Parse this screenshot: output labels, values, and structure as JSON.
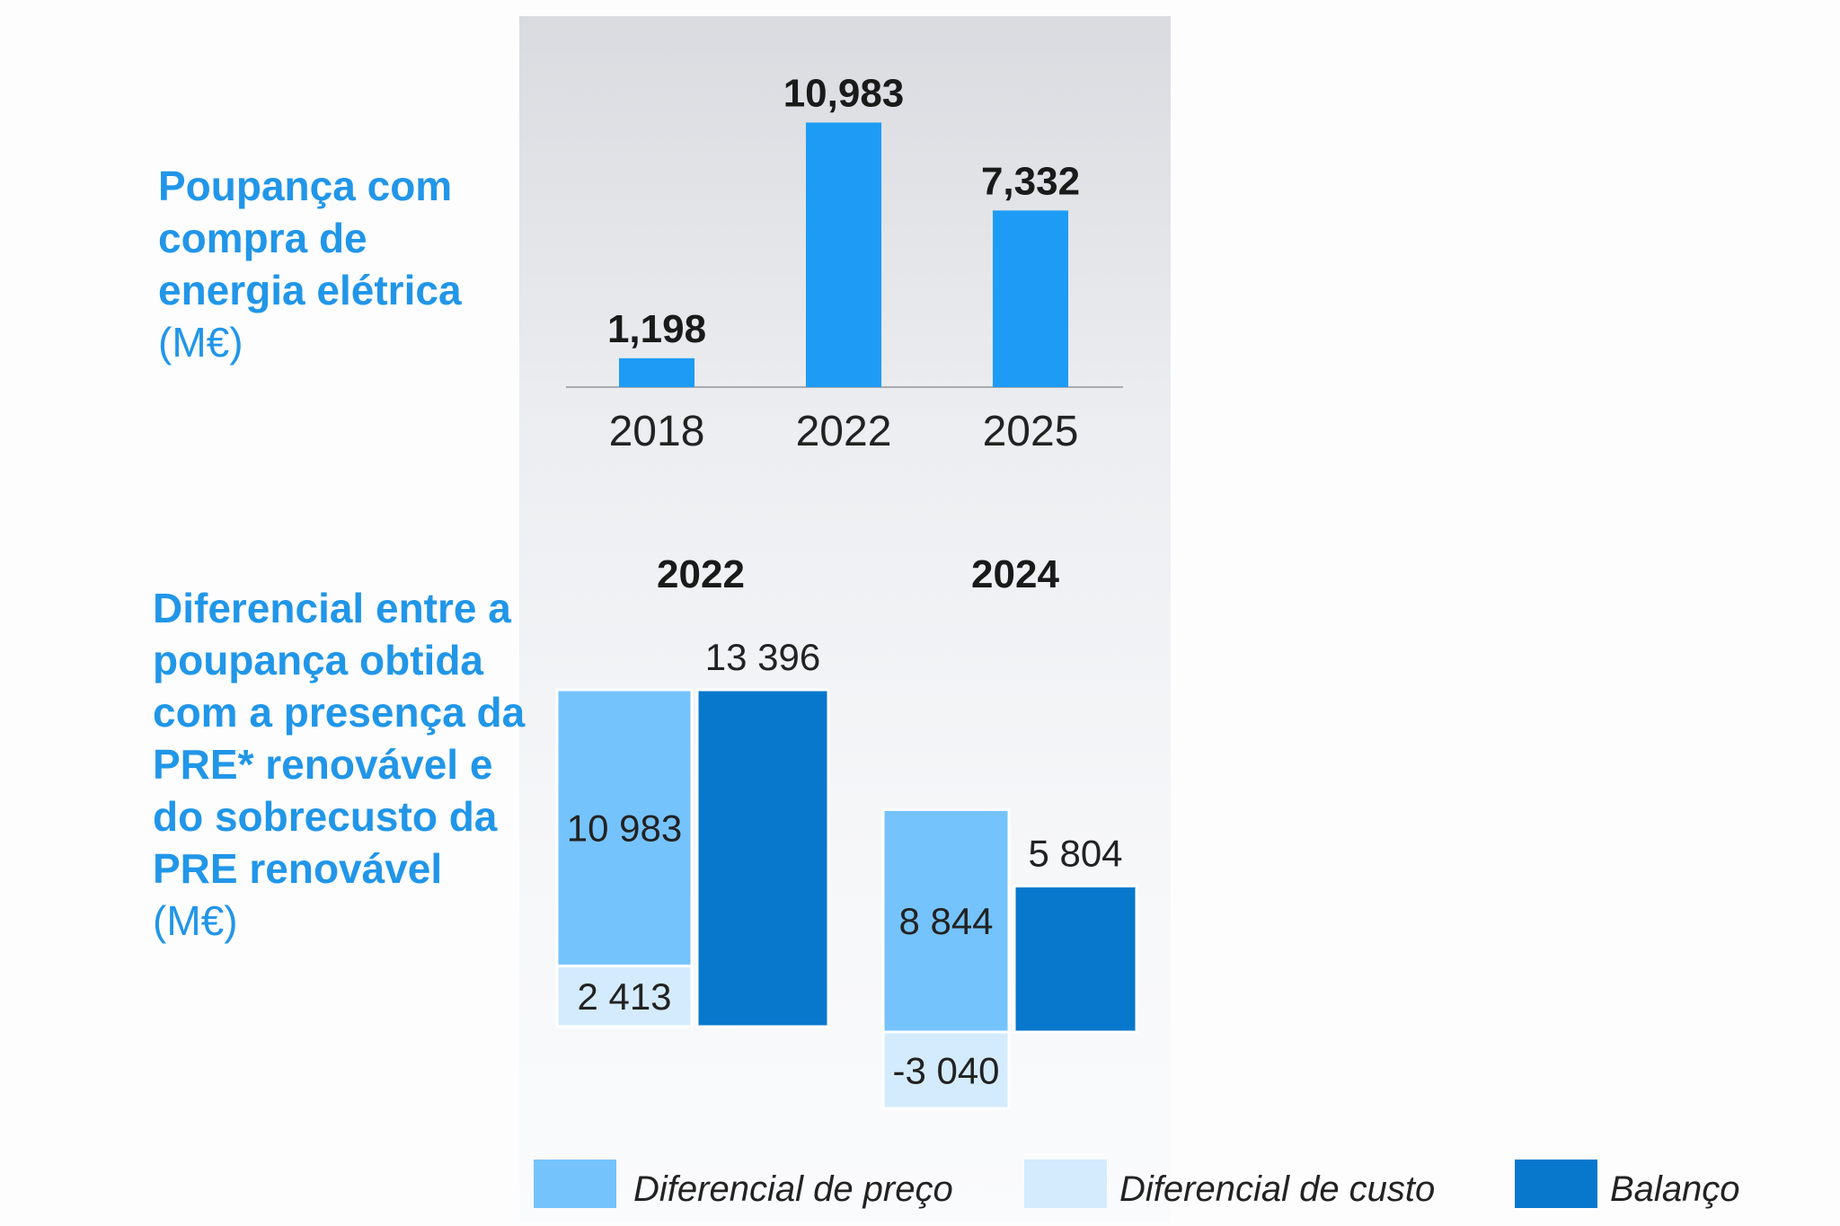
{
  "chart_data": [
    {
      "type": "bar",
      "title": "Poupança com compra de energia elétrica",
      "unit": "(M€)",
      "categories": [
        "2018",
        "2022",
        "2025"
      ],
      "values": [
        1198,
        10983,
        7332
      ],
      "value_labels": [
        "1,198",
        "10,983",
        "7,332"
      ],
      "color": "#1e9bf5",
      "ylim": [
        0,
        11000
      ]
    },
    {
      "type": "bar",
      "title": "Diferencial entre a poupança obtida com a presença da PRE* renovável e do sobrecusto da PRE renovável",
      "unit": "(M€)",
      "groups": [
        "2022",
        "2024"
      ],
      "series": [
        {
          "name": "Diferencial de preço",
          "values": [
            10983,
            8844
          ],
          "labels": [
            "10 983",
            "8 844"
          ],
          "color": "#75c3fc"
        },
        {
          "name": "Diferencial de custo",
          "values": [
            2413,
            -3040
          ],
          "labels": [
            "2 413",
            "-3 040"
          ],
          "color": "#d4ebfd"
        },
        {
          "name": "Balanço",
          "values": [
            13396,
            5804
          ],
          "labels": [
            "13 396",
            "5 804"
          ],
          "color": "#0878cc"
        }
      ],
      "legend": "bottom"
    }
  ]
}
